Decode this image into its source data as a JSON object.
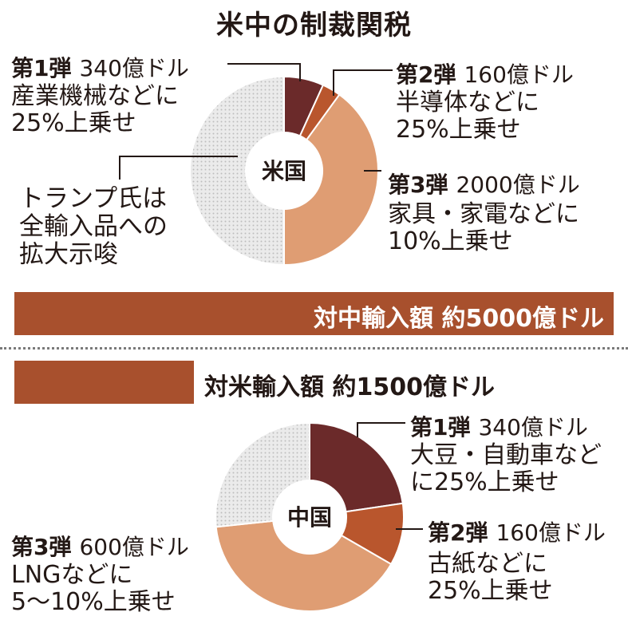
{
  "title": "米中の制裁関税",
  "chart_data": [
    {
      "type": "pie",
      "center_label": "米国",
      "total_label": "対中輸入額 約5000億ドル",
      "slices": [
        {
          "head": "第1弾",
          "amount": "340億ドル",
          "value": 340,
          "desc": [
            "産業機械などに",
            "25%上乗せ"
          ],
          "color": "#6b2a2a"
        },
        {
          "head": "第2弾",
          "amount": "160億ドル",
          "value": 160,
          "desc": [
            "半導体などに",
            "25%上乗せ"
          ],
          "color": "#b9562d"
        },
        {
          "head": "第3弾",
          "amount": "2000億ドル",
          "value": 2000,
          "desc": [
            "家具・家電などに",
            "10%上乗せ"
          ],
          "color": "#df9d73"
        },
        {
          "head": "",
          "amount": "",
          "value": 2500,
          "desc": [
            "トランプ氏は",
            "全輸入品への",
            "拡大示唆"
          ],
          "color": "#e6e6e6"
        }
      ]
    },
    {
      "type": "pie",
      "center_label": "中国",
      "total_label": "対米輸入額 約1500億ドル",
      "slices": [
        {
          "head": "第1弾",
          "amount": "340億ドル",
          "value": 340,
          "desc": [
            "大豆・自動車など",
            "に25%上乗せ"
          ],
          "color": "#6b2a2a"
        },
        {
          "head": "第2弾",
          "amount": "160億ドル",
          "value": 160,
          "desc": [
            "古紙などに",
            "25%上乗せ"
          ],
          "color": "#b9562d"
        },
        {
          "head": "第3弾",
          "amount": "600億ドル",
          "value": 600,
          "desc": [
            "LNGなどに",
            "5～10%上乗せ"
          ],
          "color": "#df9d73"
        },
        {
          "head": "",
          "amount": "",
          "value": 400,
          "desc": [],
          "color": "#e6e6e6"
        }
      ]
    }
  ]
}
